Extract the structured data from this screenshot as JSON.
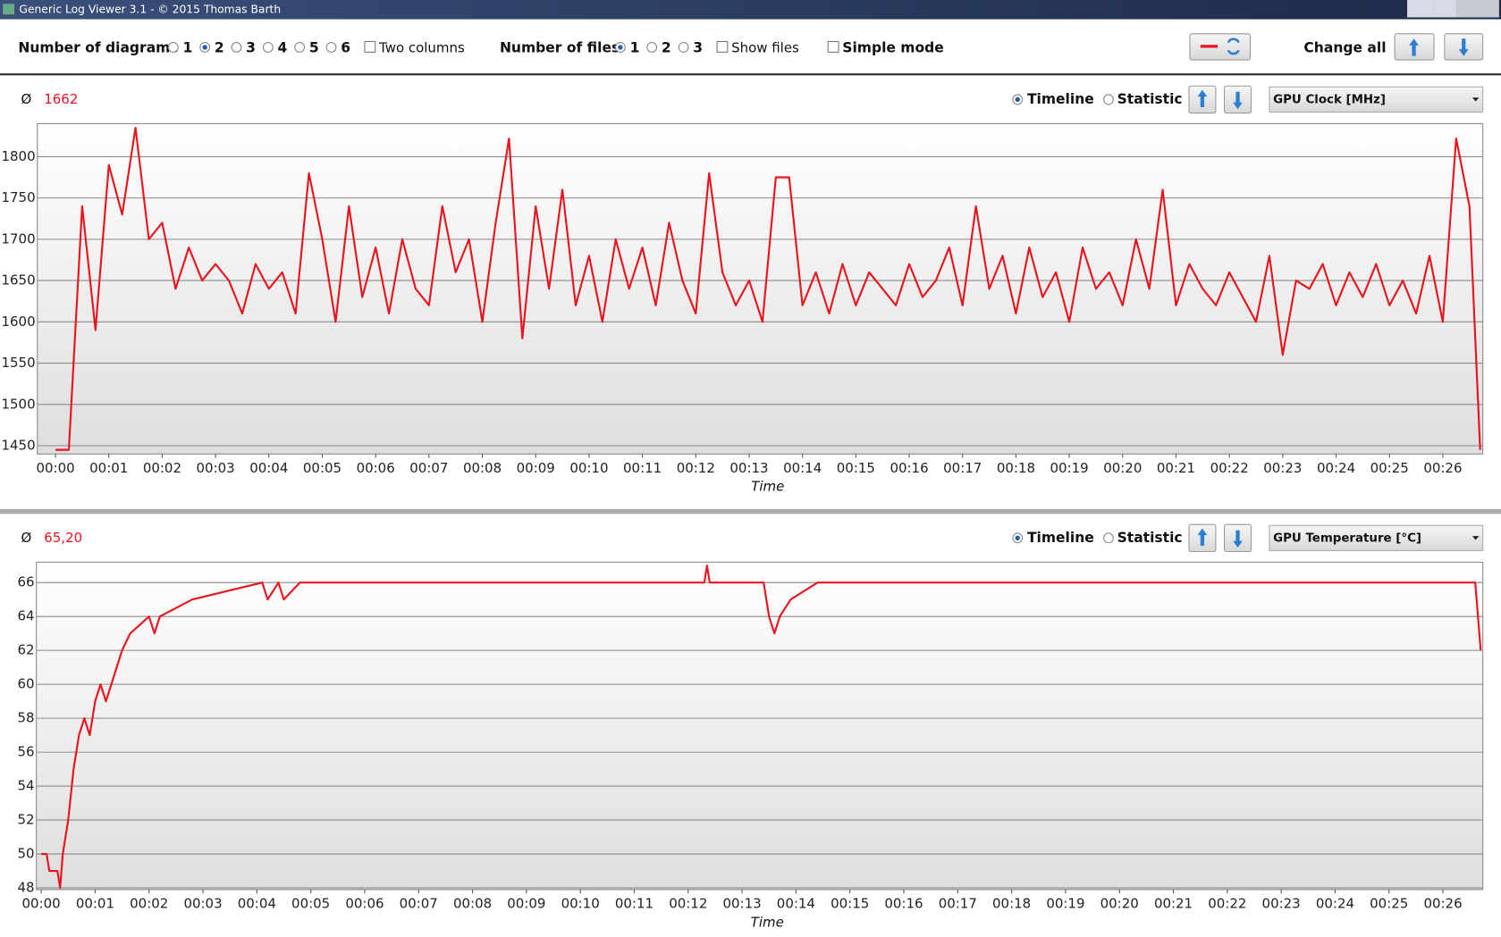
{
  "window": {
    "title": "Generic Log Viewer 3.1 - © 2015 Thomas Barth"
  },
  "toolbar": {
    "diagrams_label": "Number of diagrams",
    "diagram_options": [
      "1",
      "2",
      "3",
      "4",
      "5",
      "6"
    ],
    "diagram_checked": [
      false,
      true,
      false,
      false,
      false,
      false
    ],
    "two_columns": "Two columns",
    "files_label": "Number of files",
    "file_options": [
      "1",
      "2",
      "3"
    ],
    "file_checked": [
      true,
      false,
      false
    ],
    "show_files": "Show files",
    "simple_mode": "Simple mode",
    "change_all": "Change all"
  },
  "panels": [
    {
      "average_symbol": "Ø",
      "average": 1662,
      "timeline": "Timeline",
      "statistic": "Statistic",
      "selector": "GPU Clock [MHz]"
    },
    {
      "average_symbol": "Ø",
      "average": {
        "value": 65.2,
        "label": "65,20"
      },
      "timeline": "Timeline",
      "statistic": "Statistic",
      "selector": "GPU Temperature [°C]"
    }
  ],
  "chart_data": [
    {
      "type": "line",
      "x_label": "Time",
      "color": "#e8141e",
      "grid": true,
      "xlim": [
        -0.34,
        26.75
      ],
      "ylim": [
        1440,
        1840
      ],
      "yticks": [
        1450,
        1500,
        1550,
        1600,
        1650,
        1700,
        1750,
        1800
      ],
      "xticks": [
        {
          "value": 0,
          "label": "00:00"
        },
        {
          "value": 1,
          "label": "00:01"
        },
        {
          "value": 2,
          "label": "00:02"
        },
        {
          "value": 3,
          "label": "00:03"
        },
        {
          "value": 4,
          "label": "00:04"
        },
        {
          "value": 5,
          "label": "00:05"
        },
        {
          "value": 6,
          "label": "00:06"
        },
        {
          "value": 7,
          "label": "00:07"
        },
        {
          "value": 8,
          "label": "00:08"
        },
        {
          "value": 9,
          "label": "00:09"
        },
        {
          "value": 10,
          "label": "00:10"
        },
        {
          "value": 11,
          "label": "00:11"
        },
        {
          "value": 12,
          "label": "00:12"
        },
        {
          "value": 13,
          "label": "00:13"
        },
        {
          "value": 14,
          "label": "00:14"
        },
        {
          "value": 15,
          "label": "00:15"
        },
        {
          "value": 16,
          "label": "00:16"
        },
        {
          "value": 17,
          "label": "00:17"
        },
        {
          "value": 18,
          "label": "00:18"
        },
        {
          "value": 19,
          "label": "00:19"
        },
        {
          "value": 20,
          "label": "00:20"
        },
        {
          "value": 21,
          "label": "00:21"
        },
        {
          "value": 22,
          "label": "00:22"
        },
        {
          "value": 23,
          "label": "00:23"
        },
        {
          "value": 24,
          "label": "00:24"
        },
        {
          "value": 25,
          "label": "00:25"
        },
        {
          "value": 26,
          "label": "00:26"
        }
      ],
      "x": [
        0,
        0.25,
        0.5,
        0.75,
        1,
        1.25,
        1.5,
        1.75,
        2,
        2.25,
        2.5,
        2.75,
        3,
        3.25,
        3.5,
        3.75,
        4,
        4.25,
        4.5,
        4.75,
        5,
        5.25,
        5.5,
        5.75,
        6,
        6.25,
        6.5,
        6.75,
        7,
        7.25,
        7.5,
        7.75,
        8,
        8.25,
        8.5,
        8.75,
        9,
        9.25,
        9.5,
        9.75,
        10,
        10.25,
        10.5,
        10.75,
        11,
        11.25,
        11.5,
        11.75,
        12,
        12.25,
        12.5,
        12.75,
        13,
        13.25,
        13.5,
        13.75,
        14,
        14.25,
        14.5,
        14.75,
        15,
        15.25,
        15.5,
        15.75,
        16,
        16.25,
        16.5,
        16.75,
        17,
        17.25,
        17.5,
        17.75,
        18,
        18.25,
        18.5,
        18.75,
        19,
        19.25,
        19.5,
        19.75,
        20,
        20.25,
        20.5,
        20.75,
        21,
        21.25,
        21.5,
        21.75,
        22,
        22.25,
        22.5,
        22.75,
        23,
        23.25,
        23.5,
        23.75,
        24,
        24.25,
        24.5,
        24.75,
        25,
        25.25,
        25.5,
        25.75,
        26,
        26.25,
        26.5,
        26.7
      ],
      "values": [
        1445,
        1445,
        1740,
        1590,
        1790,
        1730,
        1835,
        1700,
        1720,
        1640,
        1690,
        1650,
        1670,
        1650,
        1610,
        1670,
        1640,
        1660,
        1610,
        1780,
        1700,
        1600,
        1740,
        1630,
        1690,
        1610,
        1700,
        1640,
        1620,
        1740,
        1660,
        1700,
        1600,
        1720,
        1822,
        1580,
        1740,
        1640,
        1760,
        1620,
        1680,
        1600,
        1700,
        1640,
        1690,
        1620,
        1720,
        1650,
        1610,
        1780,
        1660,
        1620,
        1650,
        1600,
        1775,
        1775,
        1620,
        1660,
        1610,
        1670,
        1620,
        1660,
        1640,
        1620,
        1670,
        1630,
        1650,
        1690,
        1620,
        1740,
        1640,
        1680,
        1610,
        1690,
        1630,
        1660,
        1600,
        1690,
        1640,
        1660,
        1620,
        1700,
        1640,
        1760,
        1620,
        1670,
        1640,
        1620,
        1660,
        1630,
        1600,
        1680,
        1560,
        1650,
        1640,
        1670,
        1620,
        1660,
        1630,
        1670,
        1620,
        1650,
        1610,
        1680,
        1600,
        1822,
        1740,
        1445
      ]
    },
    {
      "type": "line",
      "x_label": "Time",
      "color": "#e8141e",
      "grid": true,
      "xlim": [
        -0.09,
        26.74
      ],
      "ylim": [
        47.9,
        67.2
      ],
      "yticks": [
        48,
        50,
        52,
        54,
        56,
        58,
        60,
        62,
        64,
        66
      ],
      "xticks": [
        {
          "value": 0,
          "label": "00:00"
        },
        {
          "value": 1,
          "label": "00:01"
        },
        {
          "value": 2,
          "label": "00:02"
        },
        {
          "value": 3,
          "label": "00:03"
        },
        {
          "value": 4,
          "label": "00:04"
        },
        {
          "value": 5,
          "label": "00:05"
        },
        {
          "value": 6,
          "label": "00:06"
        },
        {
          "value": 7,
          "label": "00:07"
        },
        {
          "value": 8,
          "label": "00:08"
        },
        {
          "value": 9,
          "label": "00:09"
        },
        {
          "value": 10,
          "label": "00:10"
        },
        {
          "value": 11,
          "label": "00:11"
        },
        {
          "value": 12,
          "label": "00:12"
        },
        {
          "value": 13,
          "label": "00:13"
        },
        {
          "value": 14,
          "label": "00:14"
        },
        {
          "value": 15,
          "label": "00:15"
        },
        {
          "value": 16,
          "label": "00:16"
        },
        {
          "value": 17,
          "label": "00:17"
        },
        {
          "value": 18,
          "label": "00:18"
        },
        {
          "value": 19,
          "label": "00:19"
        },
        {
          "value": 20,
          "label": "00:20"
        },
        {
          "value": 21,
          "label": "00:21"
        },
        {
          "value": 22,
          "label": "00:22"
        },
        {
          "value": 23,
          "label": "00:23"
        },
        {
          "value": 24,
          "label": "00:24"
        },
        {
          "value": 25,
          "label": "00:25"
        },
        {
          "value": 26,
          "label": "00:26"
        }
      ],
      "x": [
        0,
        0.1,
        0.15,
        0.3,
        0.35,
        0.4,
        0.5,
        0.6,
        0.7,
        0.8,
        0.9,
        1.0,
        1.1,
        1.2,
        1.3,
        1.4,
        1.5,
        1.65,
        2.0,
        2.1,
        2.2,
        2.8,
        4.1,
        4.2,
        4.4,
        4.5,
        4.8,
        5.0,
        12.3,
        12.35,
        12.4,
        13.4,
        13.5,
        13.6,
        13.7,
        13.9,
        14.4,
        26.6,
        26.7
      ],
      "values": [
        50,
        50,
        49,
        49,
        48,
        50,
        52,
        55,
        57,
        58,
        57,
        59,
        60,
        59,
        60,
        61,
        62,
        63,
        64,
        63,
        64,
        65,
        66,
        65,
        66,
        65,
        66,
        66,
        66,
        67,
        66,
        66,
        64,
        63,
        64,
        65,
        66,
        66,
        62
      ]
    }
  ]
}
